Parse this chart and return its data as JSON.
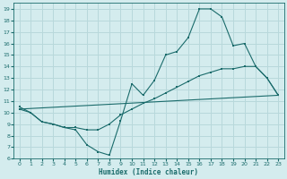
{
  "title": "",
  "xlabel": "Humidex (Indice chaleur)",
  "bg_color": "#d4ecee",
  "grid_color": "#b8d8db",
  "line_color": "#1a6b6b",
  "ylim": [
    6,
    19.5
  ],
  "xlim": [
    -0.5,
    23.5
  ],
  "yticks": [
    6,
    7,
    8,
    9,
    10,
    11,
    12,
    13,
    14,
    15,
    16,
    17,
    18,
    19
  ],
  "xticks": [
    0,
    1,
    2,
    3,
    4,
    5,
    6,
    7,
    8,
    9,
    10,
    11,
    12,
    13,
    14,
    15,
    16,
    17,
    18,
    19,
    20,
    21,
    22,
    23
  ],
  "series1_x": [
    0,
    1,
    2,
    3,
    4,
    5,
    6,
    7,
    8,
    9,
    10,
    11,
    12,
    13,
    14,
    15,
    16,
    17,
    18,
    19,
    20,
    21,
    22,
    23
  ],
  "series1_y": [
    10.5,
    10.0,
    9.2,
    9.0,
    8.7,
    8.5,
    7.2,
    6.6,
    6.3,
    9.3,
    12.5,
    11.5,
    12.8,
    15.0,
    15.3,
    16.5,
    19.0,
    19.0,
    18.3,
    15.8,
    16.0,
    14.0,
    13.0,
    11.5
  ],
  "series2_x": [
    0,
    1,
    2,
    3,
    4,
    5,
    6,
    7,
    8,
    9,
    10,
    11,
    12,
    13,
    14,
    15,
    16,
    17,
    18,
    19,
    20,
    21,
    22,
    23
  ],
  "series2_y": [
    10.3,
    10.0,
    9.2,
    9.0,
    8.7,
    8.7,
    8.5,
    8.5,
    9.0,
    9.8,
    10.3,
    10.8,
    11.2,
    11.7,
    12.2,
    12.7,
    13.2,
    13.5,
    13.8,
    13.8,
    14.0,
    14.0,
    13.0,
    11.5
  ],
  "series3_x": [
    0,
    23
  ],
  "series3_y": [
    10.3,
    11.5
  ]
}
